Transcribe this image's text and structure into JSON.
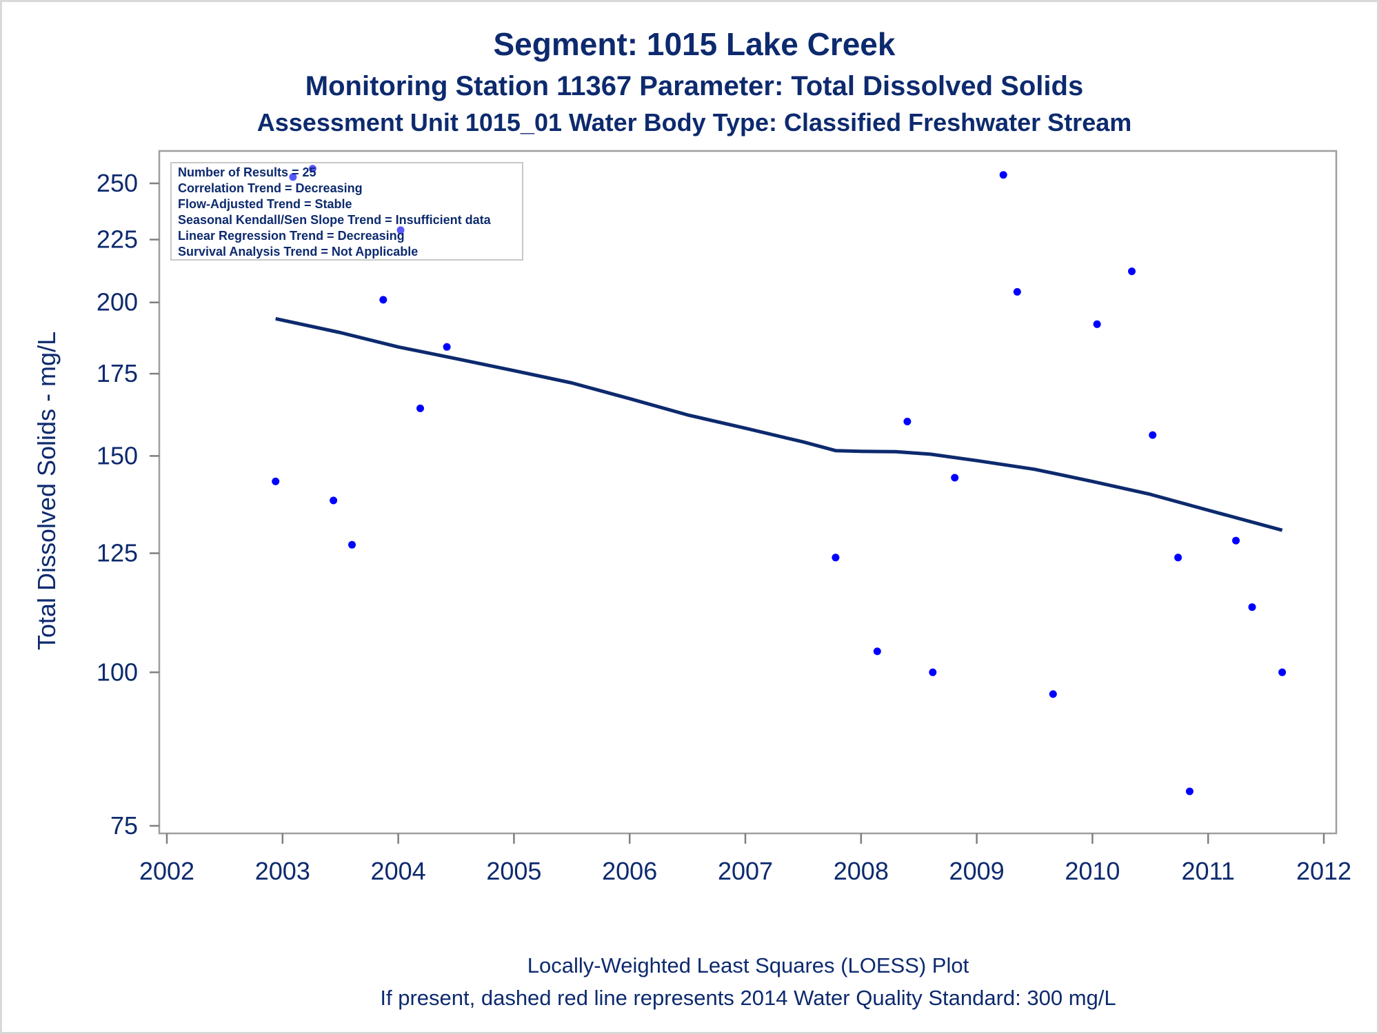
{
  "titles": {
    "line1": "Segment: 1015  Lake Creek",
    "line2": "Monitoring Station 11367 Parameter: Total Dissolved Solids",
    "line3": "Assessment Unit 1015_01   Water Body Type: Classified Freshwater Stream"
  },
  "footnotes": {
    "line1": "Locally-Weighted Least Squares (LOESS) Plot",
    "line2": "If present, dashed red line represents 2014 Water Quality Standard: 300   mg/L"
  },
  "stats_box": [
    "Number of Results = 25",
    "Correlation Trend = Decreasing",
    "Flow-Adjusted Trend = Stable",
    "Seasonal Kendall/Sen Slope Trend = Insufficient data",
    "Linear Regression Trend = Decreasing",
    "Survival Analysis Trend = Not Applicable"
  ],
  "chart_data": {
    "type": "scatter",
    "ylabel": "Total Dissolved Solids - mg/L",
    "xlabel": "",
    "y_scale": "log",
    "xlim": [
      2002,
      2012
    ],
    "ylim": [
      75,
      260
    ],
    "x_ticks": [
      2002,
      2003,
      2004,
      2005,
      2006,
      2007,
      2008,
      2009,
      2010,
      2011,
      2012
    ],
    "y_ticks": [
      75,
      100,
      125,
      150,
      175,
      200,
      225,
      250
    ],
    "colors": {
      "points": "#0000ff",
      "loess": "#0d2a6e",
      "text": "#0d2a6e",
      "axis": "#7f7f7f"
    },
    "series": [
      {
        "type": "scatter",
        "points": [
          [
            2002.94,
            143
          ],
          [
            2003.09,
            253
          ],
          [
            2003.26,
            257
          ],
          [
            2003.44,
            138
          ],
          [
            2003.6,
            127
          ],
          [
            2003.87,
            201
          ],
          [
            2004.02,
            229
          ],
          [
            2004.19,
            164
          ],
          [
            2004.42,
            184
          ],
          [
            2007.78,
            124
          ],
          [
            2008.14,
            104
          ],
          [
            2008.4,
            160
          ],
          [
            2008.62,
            100
          ],
          [
            2008.81,
            144
          ],
          [
            2009.23,
            254
          ],
          [
            2009.35,
            204
          ],
          [
            2009.66,
            96
          ],
          [
            2010.04,
            192
          ],
          [
            2010.34,
            212
          ],
          [
            2010.52,
            156
          ],
          [
            2010.74,
            124
          ],
          [
            2010.84,
            80
          ],
          [
            2011.24,
            128
          ],
          [
            2011.38,
            113
          ],
          [
            2011.64,
            100
          ]
        ]
      },
      {
        "type": "line",
        "points": [
          [
            2002.94,
            194
          ],
          [
            2003.5,
            189
          ],
          [
            2004.0,
            184
          ],
          [
            2004.5,
            180
          ],
          [
            2005.0,
            176
          ],
          [
            2005.5,
            172
          ],
          [
            2006.0,
            167
          ],
          [
            2006.5,
            162
          ],
          [
            2007.0,
            158
          ],
          [
            2007.5,
            154
          ],
          [
            2007.78,
            151.5
          ],
          [
            2008.0,
            151.3
          ],
          [
            2008.3,
            151.2
          ],
          [
            2008.6,
            150.5
          ],
          [
            2009.0,
            148.7
          ],
          [
            2009.5,
            146.3
          ],
          [
            2010.0,
            143
          ],
          [
            2010.5,
            139.6
          ],
          [
            2011.0,
            135.5
          ],
          [
            2011.64,
            130.5
          ]
        ]
      }
    ]
  }
}
